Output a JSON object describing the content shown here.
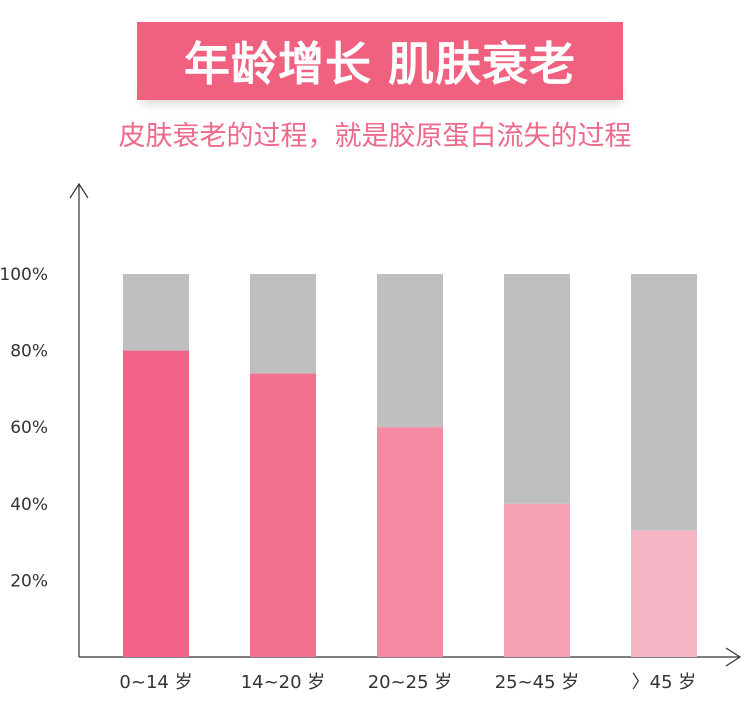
{
  "header": {
    "title_part1": "年龄增长",
    "title_part2": "肌肤衰老",
    "subtitle": "皮肤衰老的过程，就是胶原蛋白流失的过程"
  },
  "colors": {
    "banner": "#f0607f",
    "subtitle": "#ee6a8a",
    "remainder": "#bfbfbf",
    "bars": [
      "#f2648a",
      "#f2728f",
      "#f58aa5",
      "#f6a0b5",
      "#f6b6c6"
    ]
  },
  "chart_data": {
    "type": "bar",
    "stacked": true,
    "categories": [
      "0~14 岁",
      "14~20 岁",
      "20~25 岁",
      "25~45 岁",
      "〉45 岁"
    ],
    "series": [
      {
        "values": [
          80,
          74,
          60,
          40,
          33
        ]
      },
      {
        "values": [
          20,
          26,
          40,
          60,
          67
        ]
      }
    ],
    "yticks": [
      "20%",
      "40%",
      "60%",
      "80%",
      "100%"
    ],
    "ylim": [
      0,
      100
    ],
    "grid": false
  }
}
